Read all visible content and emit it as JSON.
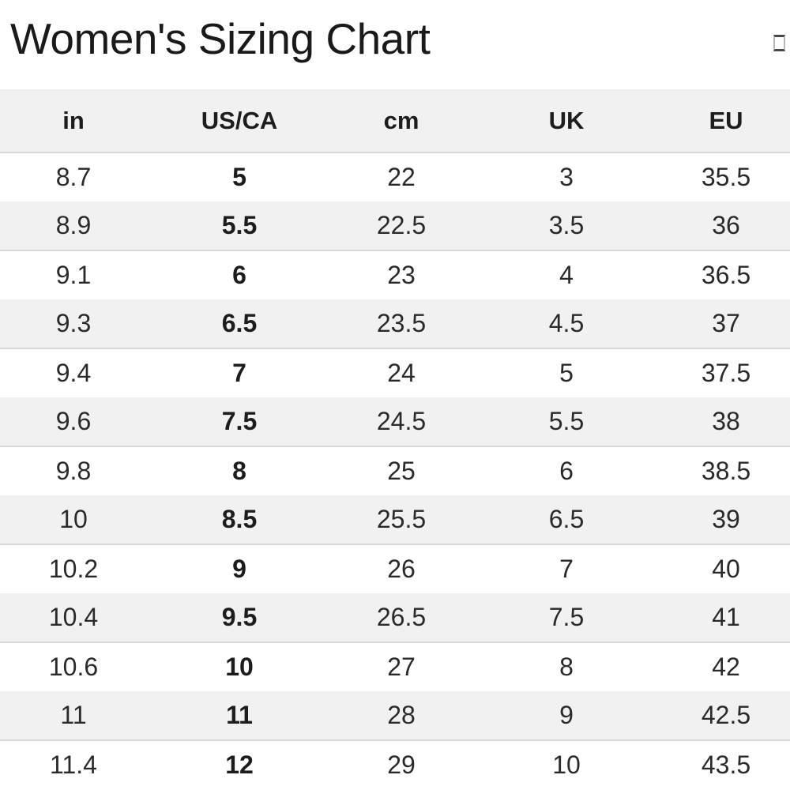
{
  "header": {
    "title": "Women's Sizing Chart"
  },
  "icons": {
    "box_glyph": "box-glyph-icon"
  },
  "sizing_table": {
    "columns": [
      "in",
      "US/CA",
      "cm",
      "UK",
      "EU"
    ],
    "bold_column_index": 1,
    "rows": [
      [
        "8.7",
        "5",
        "22",
        "3",
        "35.5"
      ],
      [
        "8.9",
        "5.5",
        "22.5",
        "3.5",
        "36"
      ],
      [
        "9.1",
        "6",
        "23",
        "4",
        "36.5"
      ],
      [
        "9.3",
        "6.5",
        "23.5",
        "4.5",
        "37"
      ],
      [
        "9.4",
        "7",
        "24",
        "5",
        "37.5"
      ],
      [
        "9.6",
        "7.5",
        "24.5",
        "5.5",
        "38"
      ],
      [
        "9.8",
        "8",
        "25",
        "6",
        "38.5"
      ],
      [
        "10",
        "8.5",
        "25.5",
        "6.5",
        "39"
      ],
      [
        "10.2",
        "9",
        "26",
        "7",
        "40"
      ],
      [
        "10.4",
        "9.5",
        "26.5",
        "7.5",
        "41"
      ],
      [
        "10.6",
        "10",
        "27",
        "8",
        "42"
      ],
      [
        "11",
        "11",
        "28",
        "9",
        "42.5"
      ],
      [
        "11.4",
        "12",
        "29",
        "10",
        "43.5"
      ]
    ]
  },
  "colors": {
    "stripe_background": "#f1f1f1",
    "stripe_border": "#d6d6d6",
    "text": "#2a2a2a",
    "title_text": "#1a1a1a",
    "page_background": "#ffffff"
  }
}
